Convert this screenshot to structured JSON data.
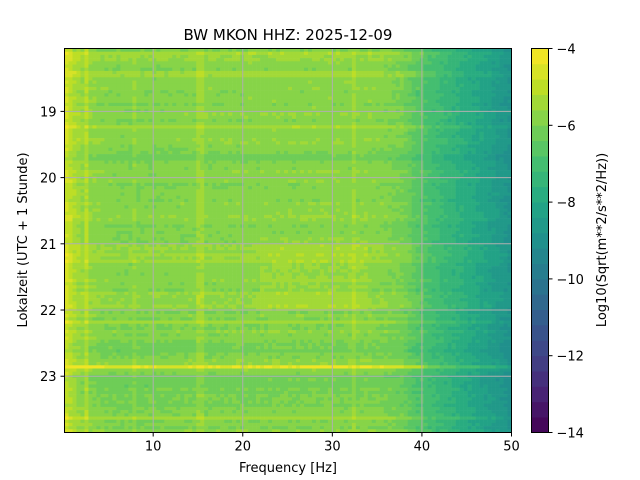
{
  "chart_data": {
    "type": "heatmap",
    "title": "BW MKON  HHZ: 2025-12-09",
    "xlabel": "Frequency [Hz]",
    "ylabel": "Lokalzeit (UTC + 1 Stunde)",
    "colorbar_label": "Log10(Sqrt(m**2/s**2/Hz))",
    "xlim": [
      0.1,
      50
    ],
    "ylim": [
      23.85,
      18.05
    ],
    "x_ticks": [
      10,
      20,
      30,
      40,
      50
    ],
    "x_tick_labels": [
      "10",
      "20",
      "30",
      "40",
      "50"
    ],
    "y_ticks": [
      19,
      20,
      21,
      22,
      23
    ],
    "y_tick_labels": [
      "19",
      "20",
      "21",
      "22",
      "23"
    ],
    "clim": [
      -14,
      -4
    ],
    "colorbar_ticks": [
      -4,
      -6,
      -8,
      -10,
      -12,
      -14
    ],
    "colorbar_tick_labels": [
      "−4",
      "−6",
      "−8",
      "−10",
      "−12",
      "−14"
    ],
    "colormap": "viridis",
    "colorbar_levels": 25,
    "grid": true,
    "grid_color": "#b0b0b0",
    "freq_profile_hz": [
      0,
      1,
      2,
      4,
      6,
      8,
      10,
      14,
      18,
      22,
      26,
      30,
      34,
      36,
      38,
      40,
      42,
      44,
      46,
      48,
      50
    ],
    "freq_profile_level": [
      -4.6,
      -5.2,
      -5.6,
      -5.8,
      -5.9,
      -5.9,
      -5.9,
      -5.85,
      -5.85,
      -5.8,
      -5.8,
      -5.8,
      -5.8,
      -5.9,
      -6.1,
      -6.8,
      -7.2,
      -7.6,
      -8.0,
      -8.4,
      -8.9
    ],
    "time_bands": [
      {
        "start": 18.1,
        "end": 18.25,
        "offset": 0.35
      },
      {
        "start": 18.4,
        "end": 18.5,
        "offset": 0.3
      },
      {
        "start": 19.2,
        "end": 19.27,
        "offset": 0.35
      },
      {
        "start": 19.6,
        "end": 19.75,
        "offset": -0.25
      },
      {
        "start": 20.4,
        "end": 20.6,
        "offset": 0.15
      },
      {
        "start": 21.0,
        "end": 21.3,
        "offset": 0.25
      },
      {
        "start": 21.7,
        "end": 21.95,
        "offset": 0.25
      },
      {
        "start": 22.15,
        "end": 22.22,
        "offset": 0.45
      },
      {
        "start": 22.5,
        "end": 22.75,
        "offset": -0.25
      },
      {
        "start": 22.84,
        "end": 22.89,
        "offset": 1.3
      },
      {
        "start": 23.0,
        "end": 23.5,
        "offset": -0.2
      },
      {
        "start": 23.62,
        "end": 23.68,
        "offset": 0.3
      }
    ],
    "freq_lines_hz": [
      {
        "freq": 2.5,
        "offset": 0.5
      },
      {
        "freq": 8.0,
        "offset": 0.2
      },
      {
        "freq": 15.3,
        "offset": 0.35
      },
      {
        "freq": 32.3,
        "offset": 0.3
      },
      {
        "freq": 40.0,
        "offset": 0.2
      }
    ]
  }
}
